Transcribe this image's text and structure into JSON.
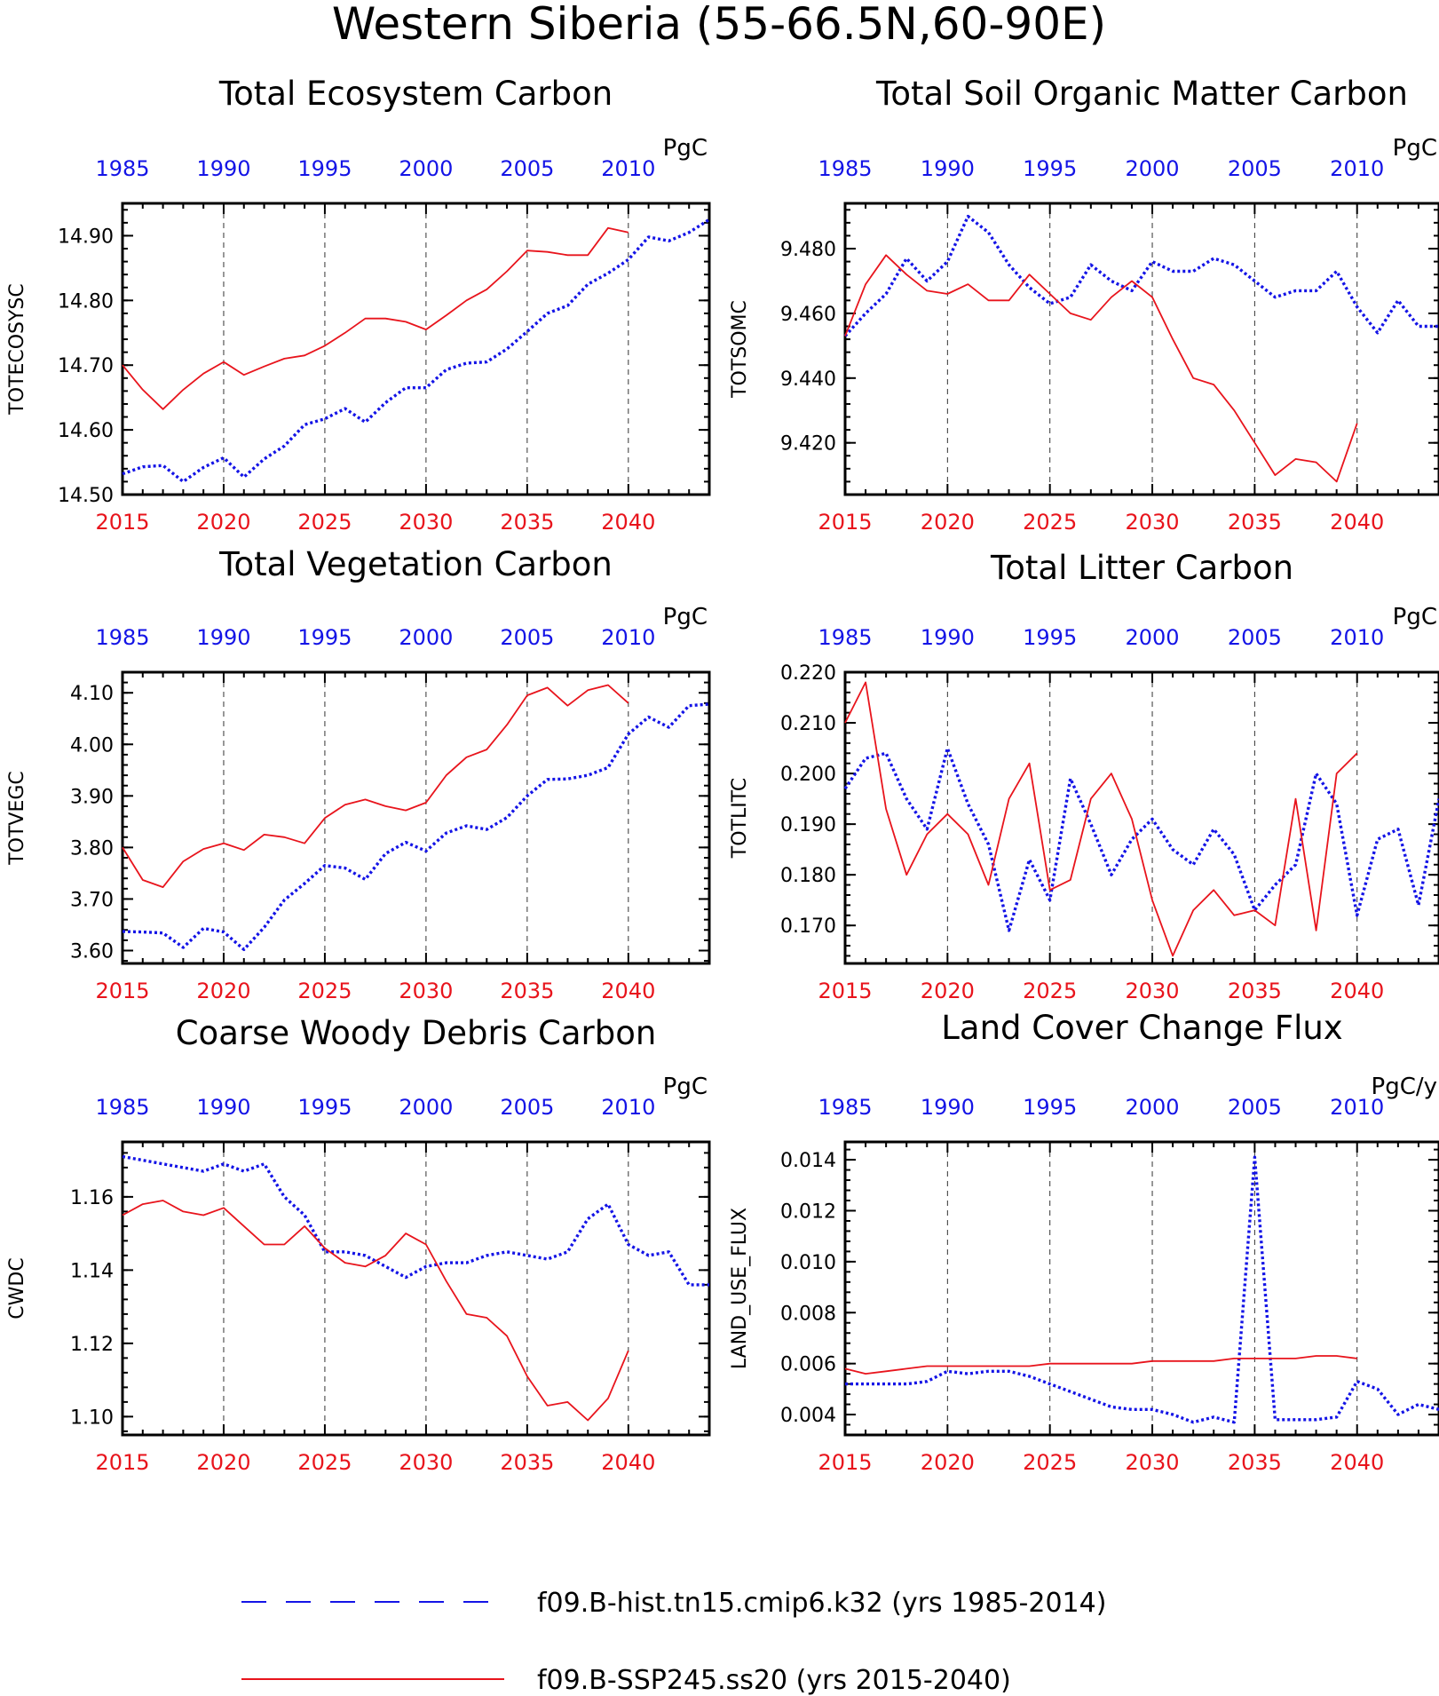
{
  "title": "Western Siberia (55-66.5N,60-90E)",
  "legend": [
    {
      "label": "f09.B-hist.tn15.cmip6.k32 (yrs 1985-2014)",
      "color": "#1414e6",
      "style": "dashed"
    },
    {
      "label": "f09.B-SSP245.ss20 (yrs 2015-2040)",
      "color": "#e8141c",
      "style": "solid"
    }
  ],
  "chart_data": [
    {
      "type": "line",
      "title": "Total Ecosystem Carbon",
      "ylabel": "TOTECOSYSC",
      "unit": "PgC",
      "bottom_axis": {
        "range": [
          2015,
          2044
        ],
        "ticks": [
          "2015",
          "2020",
          "2025",
          "2030",
          "2035",
          "2040"
        ],
        "color": "#e8141c"
      },
      "top_axis": {
        "range": [
          1985,
          2014
        ],
        "ticks": [
          "1985",
          "1990",
          "1995",
          "2000",
          "2005",
          "2010"
        ],
        "color": "#1414e6"
      },
      "ylim": [
        14.5,
        14.95
      ],
      "yticks": [
        "14.50",
        "14.60",
        "14.70",
        "14.80",
        "14.90"
      ],
      "series": [
        {
          "color": "#1414e6",
          "style": "dashed",
          "x_start": 2015,
          "values": [
            14.532,
            14.543,
            14.545,
            14.52,
            14.542,
            14.557,
            14.527,
            14.555,
            14.575,
            14.608,
            14.617,
            14.633,
            14.612,
            14.642,
            14.665,
            14.665,
            14.693,
            14.703,
            14.705,
            14.725,
            14.752,
            14.78,
            14.792,
            14.825,
            14.842,
            14.863,
            14.898,
            14.892,
            14.905,
            14.925
          ]
        },
        {
          "color": "#e8141c",
          "style": "solid",
          "x_start": 2015,
          "values": [
            14.7,
            14.662,
            14.632,
            14.662,
            14.687,
            14.705,
            14.685,
            14.698,
            14.71,
            14.715,
            14.73,
            14.75,
            14.772,
            14.772,
            14.767,
            14.755,
            14.777,
            14.8,
            14.817,
            14.845,
            14.877,
            14.875,
            14.87,
            14.87,
            14.912,
            14.905
          ]
        }
      ]
    },
    {
      "type": "line",
      "title": "Total Soil Organic Matter Carbon",
      "ylabel": "TOTSOMC",
      "unit": "PgC",
      "bottom_axis": {
        "range": [
          2015,
          2044
        ],
        "ticks": [
          "2015",
          "2020",
          "2025",
          "2030",
          "2035",
          "2040"
        ],
        "color": "#e8141c"
      },
      "top_axis": {
        "range": [
          1985,
          2014
        ],
        "ticks": [
          "1985",
          "1990",
          "1995",
          "2000",
          "2005",
          "2010"
        ],
        "color": "#1414e6"
      },
      "ylim": [
        9.404,
        9.494
      ],
      "yticks": [
        "9.420",
        "9.440",
        "9.460",
        "9.480"
      ],
      "series": [
        {
          "color": "#1414e6",
          "style": "dashed",
          "x_start": 2015,
          "values": [
            9.453,
            9.46,
            9.466,
            9.477,
            9.47,
            9.476,
            9.49,
            9.485,
            9.475,
            9.468,
            9.463,
            9.465,
            9.475,
            9.47,
            9.467,
            9.476,
            9.473,
            9.473,
            9.477,
            9.475,
            9.47,
            9.465,
            9.467,
            9.467,
            9.473,
            9.462,
            9.454,
            9.464,
            9.456,
            9.456
          ]
        },
        {
          "color": "#e8141c",
          "style": "solid",
          "x_start": 2015,
          "values": [
            9.453,
            9.469,
            9.478,
            9.472,
            9.467,
            9.466,
            9.469,
            9.464,
            9.464,
            9.472,
            9.466,
            9.46,
            9.458,
            9.465,
            9.47,
            9.465,
            9.452,
            9.44,
            9.438,
            9.43,
            9.42,
            9.41,
            9.415,
            9.414,
            9.408,
            9.426
          ]
        }
      ]
    },
    {
      "type": "line",
      "title": "Total Vegetation Carbon",
      "ylabel": "TOTVEGC",
      "unit": "PgC",
      "bottom_axis": {
        "range": [
          2015,
          2044
        ],
        "ticks": [
          "2015",
          "2020",
          "2025",
          "2030",
          "2035",
          "2040"
        ],
        "color": "#e8141c"
      },
      "top_axis": {
        "range": [
          1985,
          2014
        ],
        "ticks": [
          "1985",
          "1990",
          "1995",
          "2000",
          "2005",
          "2010"
        ],
        "color": "#1414e6"
      },
      "ylim": [
        3.575,
        4.14
      ],
      "yticks": [
        "3.60",
        "3.70",
        "3.80",
        "3.90",
        "4.00",
        "4.10"
      ],
      "series": [
        {
          "color": "#1414e6",
          "style": "dashed",
          "x_start": 2015,
          "values": [
            3.637,
            3.636,
            3.634,
            3.606,
            3.643,
            3.636,
            3.602,
            3.645,
            3.698,
            3.73,
            3.765,
            3.76,
            3.738,
            3.788,
            3.81,
            3.793,
            3.828,
            3.842,
            3.835,
            3.858,
            3.9,
            3.932,
            3.933,
            3.94,
            3.955,
            4.02,
            4.053,
            4.033,
            4.075,
            4.078
          ]
        },
        {
          "color": "#e8141c",
          "style": "solid",
          "x_start": 2015,
          "values": [
            3.8,
            3.737,
            3.723,
            3.773,
            3.797,
            3.808,
            3.795,
            3.825,
            3.82,
            3.808,
            3.857,
            3.883,
            3.893,
            3.88,
            3.872,
            3.887,
            3.94,
            3.975,
            3.99,
            4.038,
            4.095,
            4.11,
            4.075,
            4.105,
            4.115,
            4.08
          ]
        }
      ]
    },
    {
      "type": "line",
      "title": "Total Litter Carbon",
      "ylabel": "TOTLITC",
      "unit": "PgC",
      "bottom_axis": {
        "range": [
          2015,
          2044
        ],
        "ticks": [
          "2015",
          "2020",
          "2025",
          "2030",
          "2035",
          "2040"
        ],
        "color": "#e8141c"
      },
      "top_axis": {
        "range": [
          1985,
          2014
        ],
        "ticks": [
          "1985",
          "1990",
          "1995",
          "2000",
          "2005",
          "2010"
        ],
        "color": "#1414e6"
      },
      "ylim": [
        0.1625,
        0.22
      ],
      "yticks": [
        "0.170",
        "0.180",
        "0.190",
        "0.200",
        "0.210",
        "0.220"
      ],
      "series": [
        {
          "color": "#1414e6",
          "style": "dashed",
          "x_start": 2015,
          "values": [
            0.197,
            0.203,
            0.204,
            0.195,
            0.189,
            0.205,
            0.194,
            0.186,
            0.169,
            0.183,
            0.175,
            0.199,
            0.19,
            0.18,
            0.187,
            0.191,
            0.185,
            0.182,
            0.189,
            0.184,
            0.173,
            0.178,
            0.182,
            0.2,
            0.194,
            0.172,
            0.187,
            0.189,
            0.174,
            0.195
          ]
        },
        {
          "color": "#e8141c",
          "style": "solid",
          "x_start": 2015,
          "values": [
            0.21,
            0.218,
            0.193,
            0.18,
            0.188,
            0.192,
            0.188,
            0.178,
            0.195,
            0.202,
            0.177,
            0.179,
            0.195,
            0.2,
            0.191,
            0.175,
            0.164,
            0.173,
            0.177,
            0.172,
            0.173,
            0.17,
            0.195,
            0.169,
            0.2,
            0.204
          ]
        }
      ]
    },
    {
      "type": "line",
      "title": "Coarse Woody Debris Carbon",
      "ylabel": "CWDC",
      "unit": "PgC",
      "bottom_axis": {
        "range": [
          2015,
          2044
        ],
        "ticks": [
          "2015",
          "2020",
          "2025",
          "2030",
          "2035",
          "2040"
        ],
        "color": "#e8141c"
      },
      "top_axis": {
        "range": [
          1985,
          2014
        ],
        "ticks": [
          "1985",
          "1990",
          "1995",
          "2000",
          "2005",
          "2010"
        ],
        "color": "#1414e6"
      },
      "ylim": [
        1.095,
        1.175
      ],
      "yticks": [
        "1.10",
        "1.12",
        "1.14",
        "1.16"
      ],
      "series": [
        {
          "color": "#1414e6",
          "style": "dashed",
          "x_start": 2015,
          "values": [
            1.171,
            1.17,
            1.169,
            1.168,
            1.167,
            1.169,
            1.167,
            1.169,
            1.16,
            1.155,
            1.145,
            1.145,
            1.144,
            1.141,
            1.138,
            1.141,
            1.142,
            1.142,
            1.144,
            1.145,
            1.144,
            1.143,
            1.145,
            1.154,
            1.158,
            1.147,
            1.144,
            1.145,
            1.136,
            1.136
          ]
        },
        {
          "color": "#e8141c",
          "style": "solid",
          "x_start": 2015,
          "values": [
            1.155,
            1.158,
            1.159,
            1.156,
            1.155,
            1.157,
            1.152,
            1.147,
            1.147,
            1.152,
            1.146,
            1.142,
            1.141,
            1.144,
            1.15,
            1.147,
            1.137,
            1.128,
            1.127,
            1.122,
            1.111,
            1.103,
            1.104,
            1.099,
            1.105,
            1.118
          ]
        }
      ]
    },
    {
      "type": "line",
      "title": "Land Cover Change Flux",
      "ylabel": "LAND_USE_FLUX",
      "unit": "PgC/y",
      "bottom_axis": {
        "range": [
          2015,
          2044
        ],
        "ticks": [
          "2015",
          "2020",
          "2025",
          "2030",
          "2035",
          "2040"
        ],
        "color": "#e8141c"
      },
      "top_axis": {
        "range": [
          1985,
          2014
        ],
        "ticks": [
          "1985",
          "1990",
          "1995",
          "2000",
          "2005",
          "2010"
        ],
        "color": "#1414e6"
      },
      "ylim": [
        0.0032,
        0.0147
      ],
      "yticks": [
        "0.004",
        "0.006",
        "0.008",
        "0.010",
        "0.012",
        "0.014"
      ],
      "series": [
        {
          "color": "#1414e6",
          "style": "dashed",
          "x_start": 2015,
          "values": [
            0.0052,
            0.0052,
            0.0052,
            0.0052,
            0.0053,
            0.0057,
            0.0056,
            0.0057,
            0.0057,
            0.0055,
            0.0052,
            0.0049,
            0.0046,
            0.0043,
            0.0042,
            0.0042,
            0.004,
            0.0037,
            0.0039,
            0.0037,
            0.0141,
            0.0038,
            0.0038,
            0.0038,
            0.0039,
            0.0053,
            0.005,
            0.004,
            0.0044,
            0.0042
          ]
        },
        {
          "color": "#e8141c",
          "style": "solid",
          "x_start": 2015,
          "values": [
            0.0058,
            0.0056,
            0.0057,
            0.0058,
            0.0059,
            0.0059,
            0.0059,
            0.0059,
            0.0059,
            0.0059,
            0.006,
            0.006,
            0.006,
            0.006,
            0.006,
            0.0061,
            0.0061,
            0.0061,
            0.0061,
            0.0062,
            0.0062,
            0.0062,
            0.0062,
            0.0063,
            0.0063,
            0.0062
          ]
        }
      ]
    }
  ]
}
